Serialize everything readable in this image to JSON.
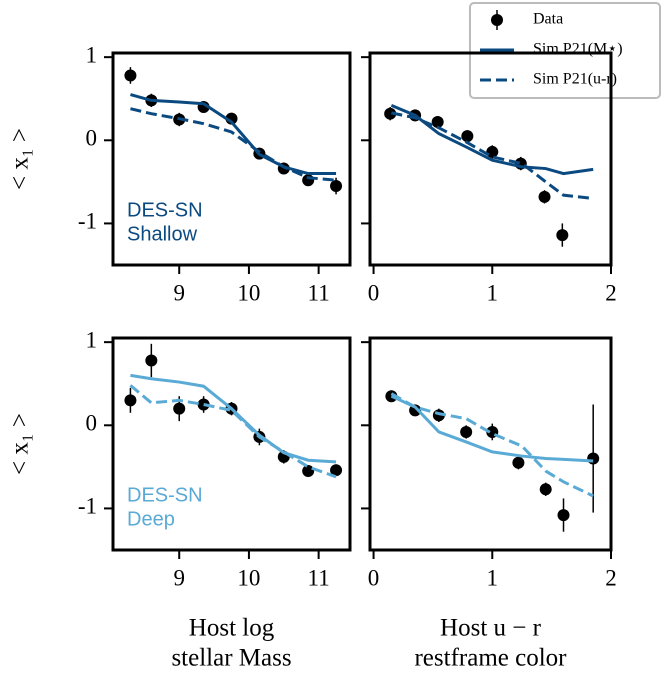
{
  "chart_data": [
    {
      "type": "line",
      "ylabel": "< x₁ >",
      "annotation": [
        "DES-SN",
        "Shallow"
      ],
      "annotation_color": "#0b4a80",
      "xlim": [
        8.05,
        11.45
      ],
      "ylim": [
        -1.5,
        1.05
      ],
      "xticks": [
        9,
        10,
        11
      ],
      "yticks": [
        -1,
        0,
        1
      ],
      "show_yticks_labels": true,
      "legend": "upper right",
      "series": [
        {
          "name": "Data",
          "marker": "circle",
          "color": "#000000",
          "x": [
            8.3,
            8.6,
            9.0,
            9.35,
            9.75,
            10.15,
            10.5,
            10.85,
            11.25
          ],
          "values": [
            0.78,
            0.48,
            0.25,
            0.4,
            0.26,
            -0.16,
            -0.34,
            -0.48,
            -0.55
          ],
          "errors": [
            0.1,
            0.08,
            0.08,
            0.06,
            0.06,
            0.06,
            0.06,
            0.06,
            0.1
          ]
        },
        {
          "name": "Sim P21(M⋆)",
          "linestyle": "solid",
          "color": "#0b4a80",
          "x": [
            8.3,
            8.6,
            9.0,
            9.35,
            9.75,
            10.15,
            10.5,
            10.85,
            11.25
          ],
          "values": [
            0.55,
            0.48,
            0.46,
            0.44,
            0.22,
            -0.17,
            -0.32,
            -0.4,
            -0.4
          ]
        },
        {
          "name": "Sim P21(u-r)",
          "linestyle": "dashed",
          "color": "#0b4a80",
          "x": [
            8.3,
            8.6,
            9.0,
            9.35,
            9.75,
            10.15,
            10.5,
            10.85,
            11.25
          ],
          "values": [
            0.38,
            0.32,
            0.26,
            0.2,
            0.1,
            -0.14,
            -0.32,
            -0.45,
            -0.48
          ]
        }
      ]
    },
    {
      "type": "line",
      "xlim": [
        -0.03,
        2.0
      ],
      "ylim": [
        -1.5,
        1.05
      ],
      "xticks": [
        0,
        1,
        2
      ],
      "yticks": [
        -1,
        0,
        1
      ],
      "show_yticks_labels": false,
      "series": [
        {
          "marker": "circle",
          "color": "#000000",
          "x": [
            0.14,
            0.35,
            0.54,
            0.79,
            1.0,
            1.24,
            1.44,
            1.59
          ],
          "values": [
            0.32,
            0.3,
            0.22,
            0.05,
            -0.14,
            -0.28,
            -0.68,
            -1.14
          ],
          "errors": [
            0.08,
            0.07,
            0.07,
            0.07,
            0.08,
            0.08,
            0.08,
            0.14
          ]
        },
        {
          "linestyle": "solid",
          "color": "#0b4a80",
          "x": [
            0.15,
            0.35,
            0.55,
            0.78,
            1.0,
            1.25,
            1.45,
            1.6,
            1.85
          ],
          "values": [
            0.42,
            0.3,
            0.08,
            -0.08,
            -0.24,
            -0.32,
            -0.34,
            -0.4,
            -0.35
          ]
        },
        {
          "linestyle": "dashed",
          "color": "#0b4a80",
          "x": [
            0.15,
            0.35,
            0.55,
            0.78,
            1.0,
            1.25,
            1.45,
            1.6,
            1.85
          ],
          "values": [
            0.33,
            0.27,
            0.15,
            -0.02,
            -0.2,
            -0.28,
            -0.5,
            -0.66,
            -0.7
          ]
        }
      ]
    },
    {
      "type": "line",
      "ylabel": "< x₁ >",
      "annotation": [
        "DES-SN",
        "Deep"
      ],
      "annotation_color": "#5aaad6",
      "xlabel": [
        "Host log",
        "stellar Mass"
      ],
      "xlim": [
        8.05,
        11.45
      ],
      "ylim": [
        -1.5,
        1.05
      ],
      "xticks": [
        9,
        10,
        11
      ],
      "yticks": [
        -1,
        0,
        1
      ],
      "show_yticks_labels": true,
      "series": [
        {
          "marker": "circle",
          "color": "#000000",
          "x": [
            8.3,
            8.6,
            9.0,
            9.35,
            9.75,
            10.15,
            10.5,
            10.85,
            11.25
          ],
          "values": [
            0.3,
            0.78,
            0.2,
            0.25,
            0.2,
            -0.14,
            -0.38,
            -0.55,
            -0.54
          ],
          "errors": [
            0.15,
            0.2,
            0.15,
            0.1,
            0.08,
            0.1,
            0.08,
            0.06,
            0.07
          ]
        },
        {
          "linestyle": "solid",
          "color": "#5aaad6",
          "x": [
            8.3,
            8.6,
            9.0,
            9.35,
            9.75,
            10.15,
            10.5,
            10.85,
            11.25
          ],
          "values": [
            0.6,
            0.56,
            0.52,
            0.47,
            0.2,
            -0.12,
            -0.33,
            -0.42,
            -0.44
          ]
        },
        {
          "linestyle": "dashed",
          "color": "#5aaad6",
          "x": [
            8.3,
            8.6,
            9.0,
            9.35,
            9.75,
            10.15,
            10.5,
            10.85,
            11.25
          ],
          "values": [
            0.48,
            0.27,
            0.3,
            0.25,
            0.18,
            -0.14,
            -0.32,
            -0.5,
            -0.62
          ]
        }
      ]
    },
    {
      "type": "line",
      "xlabel": [
        "Host u − r",
        "restframe color"
      ],
      "xlim": [
        -0.03,
        2.0
      ],
      "ylim": [
        -1.5,
        1.05
      ],
      "xticks": [
        0,
        1,
        2
      ],
      "yticks": [
        -1,
        0,
        1
      ],
      "show_yticks_labels": false,
      "series": [
        {
          "marker": "circle",
          "color": "#000000",
          "x": [
            0.15,
            0.35,
            0.55,
            0.78,
            1.0,
            1.22,
            1.45,
            1.6,
            1.85
          ],
          "values": [
            0.35,
            0.18,
            0.12,
            -0.08,
            -0.08,
            -0.45,
            -0.77,
            -1.08,
            -0.4
          ],
          "errors": [
            0.07,
            0.06,
            0.08,
            0.08,
            0.1,
            0.08,
            0.08,
            0.2,
            0.65
          ]
        },
        {
          "linestyle": "solid",
          "color": "#5aaad6",
          "x": [
            0.15,
            0.35,
            0.55,
            0.78,
            1.0,
            1.25,
            1.45,
            1.6,
            1.85
          ],
          "values": [
            0.35,
            0.22,
            -0.08,
            -0.2,
            -0.32,
            -0.37,
            -0.4,
            -0.41,
            -0.43
          ]
        },
        {
          "linestyle": "dashed",
          "color": "#5aaad6",
          "x": [
            0.15,
            0.35,
            0.55,
            0.78,
            1.0,
            1.25,
            1.45,
            1.6,
            1.85
          ],
          "values": [
            0.38,
            0.22,
            0.14,
            0.08,
            -0.1,
            -0.25,
            -0.55,
            -0.68,
            -0.85
          ]
        }
      ]
    }
  ]
}
